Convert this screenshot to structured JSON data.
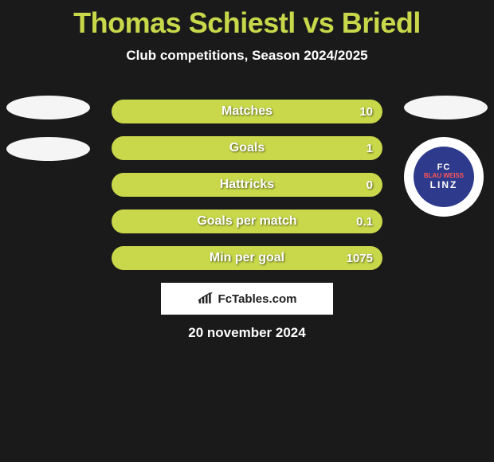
{
  "title": "Thomas Schiestl vs Briedl",
  "subtitle": "Club competitions, Season 2024/2025",
  "date": "20 november 2024",
  "watermark": "FcTables.com",
  "colors": {
    "title": "#c8d84a",
    "bar_dark": "#aab83a",
    "bar_light": "#c8d84a",
    "bg": "#1a1a1a",
    "text": "#ffffff",
    "club_bg": "#2e3a8c"
  },
  "club": {
    "fc": "FC",
    "bw": "BLAU WEISS",
    "linz": "LINZ"
  },
  "stats": [
    {
      "label": "Matches",
      "right_value": "10",
      "left_pct": 0
    },
    {
      "label": "Goals",
      "right_value": "1",
      "left_pct": 0
    },
    {
      "label": "Hattricks",
      "right_value": "0",
      "left_pct": 0
    },
    {
      "label": "Goals per match",
      "right_value": "0.1",
      "left_pct": 0
    },
    {
      "label": "Min per goal",
      "right_value": "1075",
      "left_pct": 0
    }
  ]
}
